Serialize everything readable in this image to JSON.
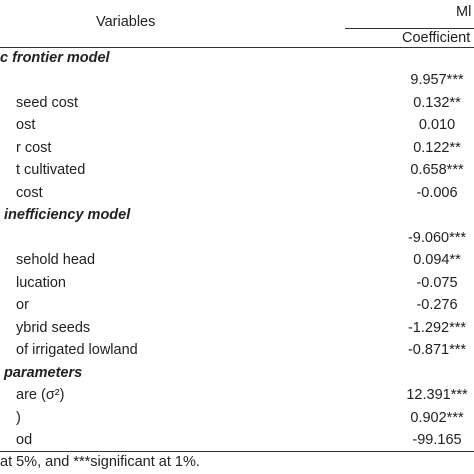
{
  "header": {
    "variables": "Variables",
    "group": "Ml",
    "column": "Coefficient"
  },
  "rows": [
    {
      "section": "c frontier model"
    },
    {
      "value": "9.957***"
    },
    {
      "label": "seed cost",
      "value": "0.132**"
    },
    {
      "label": "ost",
      "value": "0.010"
    },
    {
      "label": "r cost",
      "value": "0.122**"
    },
    {
      "label": "t cultivated",
      "value": "0.658***"
    },
    {
      "label": "cost",
      "value": "-0.006"
    },
    {
      "section": "inefficiency model"
    },
    {
      "value": "-9.060***"
    },
    {
      "label": "sehold head",
      "value": "0.094**"
    },
    {
      "label": "lucation",
      "value": "-0.075"
    },
    {
      "label": "or",
      "value": "-0.276"
    },
    {
      "label": "ybrid seeds",
      "value": "-1.292***"
    },
    {
      "label": "of irrigated lowland",
      "value": "-0.871***"
    },
    {
      "section": "parameters"
    },
    {
      "label": "are (σ²)",
      "value": "12.391***"
    },
    {
      "label": ")",
      "value": "0.902***"
    },
    {
      "label": "od",
      "value": "-99.165"
    }
  ],
  "footnote": "at 5%, and ***significant at 1%."
}
